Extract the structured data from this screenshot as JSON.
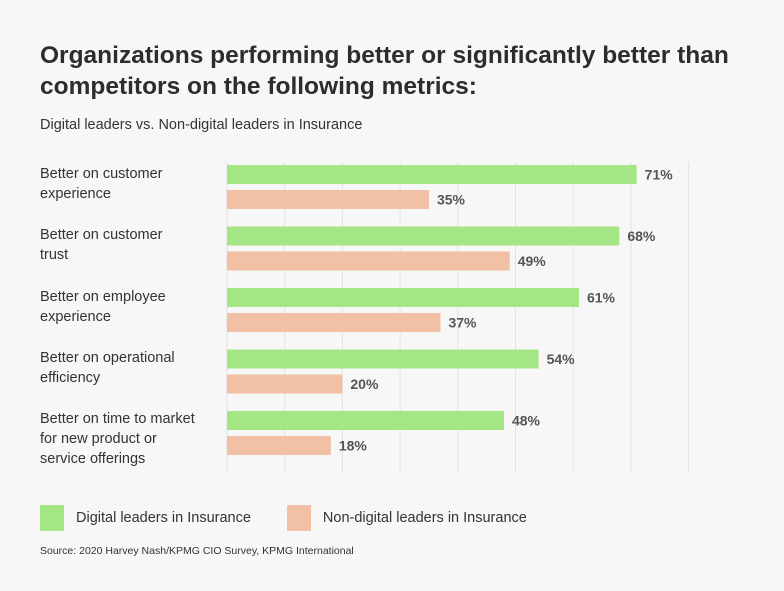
{
  "header": {
    "title": "Organizations performing better or significantly better than competitors on the following metrics:",
    "subtitle": "Digital leaders vs. Non-digital leaders in Insurance"
  },
  "chart_data": {
    "type": "bar",
    "orientation": "horizontal",
    "categories": [
      "Better on customer experience",
      "Better on customer trust",
      "Better on employee experience",
      "Better on operational efficiency",
      "Better on time to market for new product or service offerings"
    ],
    "category_lines": [
      [
        "Better on customer",
        "experience"
      ],
      [
        "Better on customer",
        "trust"
      ],
      [
        "Better on employee",
        "experience"
      ],
      [
        "Better on operational",
        "efficiency"
      ],
      [
        "Better on time to market",
        "for new product or",
        "service offerings"
      ]
    ],
    "series": [
      {
        "name": "Digital leaders in Insurance",
        "values": [
          71,
          68,
          61,
          54,
          48
        ],
        "color": "#a4e685"
      },
      {
        "name": "Non-digital leaders in Insurance",
        "values": [
          35,
          49,
          37,
          20,
          18
        ],
        "color": "#f2c0a5"
      }
    ],
    "value_suffix": "%",
    "xlim": [
      0,
      80
    ],
    "grid": true,
    "legend_position": "bottom"
  },
  "source": "Source: 2020 Harvey Nash/KPMG CIO Survey, KPMG International"
}
